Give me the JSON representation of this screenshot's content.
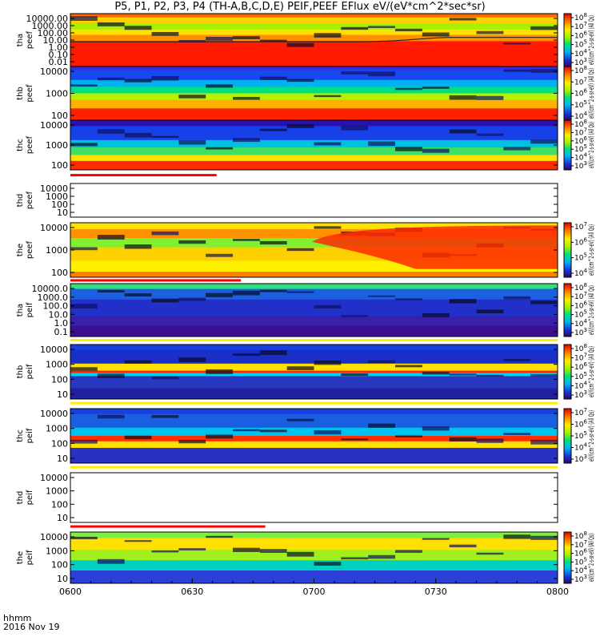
{
  "title": "P5, P1, P2, P3, P4 (TH-A,B,C,D,E) PEIF,PEEF EFlux eV/(eV*cm^2*sec*sr)",
  "footer": {
    "hhmm": "hhmm",
    "date": "2016 Nov 19"
  },
  "chart_data": {
    "type": "heatmap",
    "x_ticks": [
      "0600",
      "0630",
      "0700",
      "0730",
      "0800"
    ],
    "x_range": [
      "0600",
      "0800"
    ],
    "panels": [
      {
        "id": "tha-peef",
        "label": [
          "tha",
          "peef"
        ],
        "y_ticks": [
          "10000.00",
          "1000.00",
          "100.00",
          "10.00",
          "1.00",
          "0.10",
          "0.01"
        ],
        "y_scale": "log",
        "colorbar": [
          "10^8",
          "10^7",
          "10^6",
          "10^5",
          "10^4",
          "10^3"
        ],
        "colorbar_label": "eV/(cm^2-s-sr-eV)  (All Qs)"
      },
      {
        "id": "thb-peef",
        "label": [
          "thb",
          "peef"
        ],
        "y_ticks": [
          "10000",
          "1000",
          "100"
        ],
        "y_scale": "log",
        "colorbar": [
          "10^8",
          "10^7",
          "10^6",
          "10^5",
          "10^4"
        ],
        "colorbar_label": "eV/(cm^2-s-sr-eV)  (All Qs)"
      },
      {
        "id": "thc-peef",
        "label": [
          "thc",
          "peef"
        ],
        "y_ticks": [
          "10000",
          "1000",
          "100"
        ],
        "y_scale": "log",
        "colorbar": [
          "10^8",
          "10^7",
          "10^6",
          "10^5",
          "10^4",
          "10^3"
        ],
        "colorbar_label": "eV/(cm^2-s-sr-eV)  (All Qs)"
      },
      {
        "id": "thd-peef",
        "label": [
          "thd",
          "peef"
        ],
        "y_ticks": [
          "10000",
          "1000",
          "100",
          "10"
        ],
        "y_scale": "log",
        "colorbar": [],
        "colorbar_label": "eV/(cm^2-s-sr-eV)  (All Qs)"
      },
      {
        "id": "the-peef",
        "label": [
          "the",
          "peef"
        ],
        "y_ticks": [
          "10000",
          "1000",
          "100"
        ],
        "y_scale": "log",
        "colorbar": [
          "10^7",
          "10^6",
          "10^5",
          "10^4"
        ],
        "colorbar_label": "eV/(cm^2-s-sr-eV)  (All Qs)"
      },
      {
        "id": "tha-peif",
        "label": [
          "tha",
          "peif"
        ],
        "y_ticks": [
          "10000.0",
          "1000.0",
          "100.0",
          "10.0",
          "1.0",
          "0.1"
        ],
        "y_scale": "log",
        "colorbar": [
          "10^8",
          "10^7",
          "10^6",
          "10^5",
          "10^4",
          "10^3"
        ],
        "colorbar_label": "eV/(cm^2-s-sr-eV)  (All Qs)"
      },
      {
        "id": "thb-peif",
        "label": [
          "thb",
          "peif"
        ],
        "y_ticks": [
          "10000",
          "1000",
          "100",
          "10"
        ],
        "y_scale": "log",
        "colorbar": [
          "10^8",
          "10^7",
          "10^6",
          "10^5",
          "10^4",
          "10^3"
        ],
        "colorbar_label": "eV/(cm^2-s-sr-eV)  (All Qs)"
      },
      {
        "id": "thc-peif",
        "label": [
          "thc",
          "peif"
        ],
        "y_ticks": [
          "10000",
          "1000",
          "100",
          "10"
        ],
        "y_scale": "log",
        "colorbar": [
          "10^7",
          "10^6",
          "10^5",
          "10^4",
          "10^3"
        ],
        "colorbar_label": "eV/(cm^2-s-sr-eV)  (All Qs)"
      },
      {
        "id": "thd-peif",
        "label": [
          "thd",
          "peif"
        ],
        "y_ticks": [
          "10000",
          "1000",
          "100",
          "10"
        ],
        "y_scale": "log",
        "colorbar": [],
        "colorbar_label": "eV/(cm^2-s-sr-eV)  (All Qs)"
      },
      {
        "id": "the-peif",
        "label": [
          "the",
          "peif"
        ],
        "y_ticks": [
          "10000",
          "1000",
          "100",
          "10"
        ],
        "y_scale": "log",
        "colorbar": [
          "10^8",
          "10^7",
          "10^6",
          "10^5",
          "10^4",
          "10^3"
        ],
        "colorbar_label": "eV/(cm^2-s-sr-eV)  (All Qs)"
      }
    ]
  }
}
